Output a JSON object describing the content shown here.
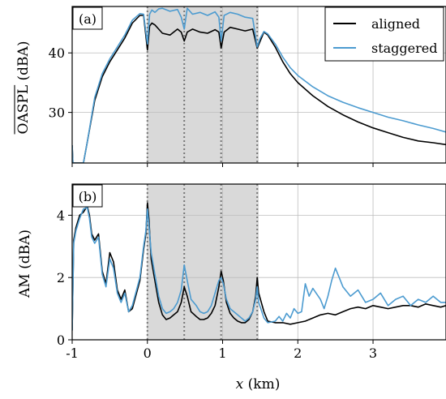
{
  "figure": {
    "xlabel_var": "x",
    "xlabel_unit": " (km)"
  },
  "chart_data": [
    {
      "type": "line",
      "panel_label": "(a)",
      "ylabel": "OASPL (dBA)",
      "ylabel_overline": "OASPL",
      "ylabel_unit": " (dBA)",
      "xlim": [
        -1.0,
        3.97
      ],
      "ylim": [
        21.5,
        47.8
      ],
      "x_ticks": [
        -1,
        0,
        1,
        2,
        3
      ],
      "x_tick_labels": [
        "",
        "",
        "",
        "",
        ""
      ],
      "y_ticks": [
        30,
        40
      ],
      "y_tick_labels": [
        "30",
        "40"
      ],
      "grid": true,
      "legend_position": "top-right",
      "shaded_region": [
        0,
        1.48
      ],
      "turbine_positions": [
        0,
        0.49,
        0.98,
        1.46
      ],
      "series": [
        {
          "name": "aligned",
          "color": "#000000",
          "x": [
            -1.0,
            -0.99,
            -0.9,
            -0.85,
            -0.8,
            -0.7,
            -0.6,
            -0.5,
            -0.4,
            -0.3,
            -0.2,
            -0.1,
            -0.05,
            0.0,
            0.03,
            0.06,
            0.1,
            0.15,
            0.2,
            0.3,
            0.4,
            0.45,
            0.49,
            0.53,
            0.6,
            0.7,
            0.8,
            0.9,
            0.95,
            0.98,
            1.02,
            1.1,
            1.2,
            1.3,
            1.4,
            1.46,
            1.5,
            1.55,
            1.6,
            1.7,
            1.8,
            1.9,
            2.0,
            2.2,
            2.4,
            2.6,
            2.8,
            3.0,
            3.2,
            3.4,
            3.6,
            3.8,
            3.97
          ],
          "y": [
            24.5,
            21.5,
            21.5,
            21.5,
            25.0,
            32.0,
            36.0,
            38.5,
            40.5,
            42.5,
            45.0,
            46.3,
            46.3,
            40.5,
            44.5,
            45.0,
            44.7,
            44.0,
            43.3,
            43.0,
            44.0,
            43.5,
            42.0,
            43.5,
            44.0,
            43.5,
            43.3,
            43.9,
            43.5,
            40.8,
            43.5,
            44.3,
            44.0,
            43.7,
            44.0,
            40.8,
            42.0,
            43.5,
            43.0,
            41.0,
            38.5,
            36.5,
            35.0,
            32.8,
            31.0,
            29.6,
            28.4,
            27.4,
            26.6,
            25.8,
            25.2,
            24.9,
            24.6
          ]
        },
        {
          "name": "staggered",
          "color": "#4c9bd0",
          "x": [
            -1.0,
            -0.99,
            -0.9,
            -0.85,
            -0.8,
            -0.7,
            -0.6,
            -0.5,
            -0.4,
            -0.3,
            -0.2,
            -0.1,
            -0.05,
            0.0,
            0.03,
            0.06,
            0.1,
            0.15,
            0.2,
            0.3,
            0.4,
            0.45,
            0.49,
            0.53,
            0.6,
            0.7,
            0.8,
            0.9,
            0.95,
            0.98,
            1.02,
            1.1,
            1.2,
            1.3,
            1.4,
            1.46,
            1.5,
            1.55,
            1.6,
            1.7,
            1.8,
            1.9,
            2.0,
            2.2,
            2.4,
            2.6,
            2.8,
            3.0,
            3.2,
            3.4,
            3.6,
            3.8,
            3.97
          ],
          "y": [
            24.5,
            21.5,
            21.5,
            21.5,
            25.0,
            32.5,
            36.5,
            39.0,
            41.0,
            43.0,
            45.5,
            46.6,
            46.5,
            41.5,
            46.5,
            47.2,
            46.8,
            47.4,
            47.5,
            47.0,
            47.3,
            46.0,
            44.0,
            47.5,
            46.5,
            46.8,
            46.3,
            46.9,
            46.0,
            42.0,
            46.3,
            46.8,
            46.5,
            46.0,
            45.8,
            41.0,
            42.5,
            43.6,
            43.2,
            41.5,
            39.3,
            37.5,
            36.2,
            34.3,
            32.8,
            31.7,
            30.8,
            30.0,
            29.2,
            28.6,
            27.9,
            27.3,
            26.7
          ]
        }
      ]
    },
    {
      "type": "line",
      "panel_label": "(b)",
      "ylabel": "AM (dBA)",
      "xlim": [
        -1.0,
        3.97
      ],
      "ylim": [
        0,
        5.0
      ],
      "x_ticks": [
        -1,
        0,
        1,
        2,
        3
      ],
      "x_tick_labels": [
        "-1",
        "0",
        "1",
        "2",
        "3"
      ],
      "y_ticks": [
        0,
        2,
        4
      ],
      "y_tick_labels": [
        "0",
        "2",
        "4"
      ],
      "grid": true,
      "shaded_region": [
        0,
        1.48
      ],
      "turbine_positions": [
        0,
        0.49,
        0.98,
        1.46
      ],
      "series": [
        {
          "name": "aligned",
          "color": "#000000",
          "x": [
            -1.0,
            -0.98,
            -0.95,
            -0.9,
            -0.85,
            -0.8,
            -0.77,
            -0.74,
            -0.7,
            -0.65,
            -0.6,
            -0.55,
            -0.5,
            -0.45,
            -0.4,
            -0.35,
            -0.3,
            -0.25,
            -0.2,
            -0.1,
            -0.05,
            -0.02,
            0.0,
            0.02,
            0.05,
            0.1,
            0.15,
            0.2,
            0.25,
            0.3,
            0.35,
            0.4,
            0.45,
            0.49,
            0.53,
            0.58,
            0.65,
            0.7,
            0.75,
            0.8,
            0.85,
            0.9,
            0.95,
            0.98,
            1.01,
            1.05,
            1.1,
            1.15,
            1.2,
            1.25,
            1.3,
            1.35,
            1.4,
            1.44,
            1.46,
            1.48,
            1.55,
            1.6,
            1.7,
            1.8,
            1.9,
            2.0,
            2.1,
            2.2,
            2.3,
            2.4,
            2.5,
            2.6,
            2.7,
            2.8,
            2.9,
            3.0,
            3.1,
            3.2,
            3.3,
            3.4,
            3.5,
            3.6,
            3.7,
            3.8,
            3.9,
            3.97
          ],
          "y": [
            0.3,
            3.2,
            3.6,
            4.0,
            4.1,
            4.3,
            4.0,
            3.4,
            3.2,
            3.4,
            2.2,
            1.8,
            2.8,
            2.5,
            1.6,
            1.3,
            1.6,
            0.9,
            1.0,
            1.9,
            2.9,
            3.4,
            4.4,
            3.9,
            2.6,
            1.9,
            1.2,
            0.8,
            0.65,
            0.7,
            0.8,
            0.9,
            1.2,
            1.7,
            1.4,
            0.9,
            0.75,
            0.65,
            0.65,
            0.7,
            0.85,
            1.1,
            1.7,
            2.2,
            1.9,
            1.2,
            0.85,
            0.7,
            0.6,
            0.55,
            0.55,
            0.65,
            0.9,
            1.4,
            2.0,
            1.5,
            0.9,
            0.6,
            0.55,
            0.55,
            0.5,
            0.55,
            0.6,
            0.7,
            0.8,
            0.85,
            0.8,
            0.9,
            1.0,
            1.05,
            1.0,
            1.1,
            1.05,
            1.0,
            1.05,
            1.1,
            1.1,
            1.05,
            1.15,
            1.1,
            1.05,
            1.1
          ]
        },
        {
          "name": "staggered",
          "color": "#4c9bd0",
          "x": [
            -1.0,
            -0.98,
            -0.95,
            -0.9,
            -0.85,
            -0.8,
            -0.77,
            -0.74,
            -0.7,
            -0.65,
            -0.6,
            -0.55,
            -0.5,
            -0.45,
            -0.4,
            -0.35,
            -0.3,
            -0.25,
            -0.2,
            -0.1,
            -0.05,
            -0.02,
            0.0,
            0.02,
            0.05,
            0.1,
            0.15,
            0.2,
            0.25,
            0.3,
            0.35,
            0.4,
            0.45,
            0.49,
            0.53,
            0.58,
            0.65,
            0.7,
            0.75,
            0.8,
            0.85,
            0.9,
            0.95,
            0.98,
            1.01,
            1.05,
            1.1,
            1.15,
            1.2,
            1.25,
            1.3,
            1.35,
            1.4,
            1.44,
            1.46,
            1.48,
            1.55,
            1.6,
            1.7,
            1.75,
            1.8,
            1.85,
            1.9,
            1.95,
            2.0,
            2.05,
            2.1,
            2.15,
            2.2,
            2.3,
            2.35,
            2.4,
            2.45,
            2.5,
            2.55,
            2.6,
            2.7,
            2.8,
            2.9,
            3.0,
            3.1,
            3.2,
            3.3,
            3.4,
            3.5,
            3.6,
            3.7,
            3.8,
            3.9,
            3.97
          ],
          "y": [
            0.3,
            3.1,
            3.5,
            3.9,
            4.2,
            4.25,
            3.9,
            3.3,
            3.1,
            3.3,
            2.1,
            1.7,
            2.6,
            2.3,
            1.5,
            1.2,
            1.5,
            0.9,
            1.1,
            2.0,
            3.0,
            3.5,
            4.2,
            3.7,
            2.8,
            2.1,
            1.4,
            1.0,
            0.85,
            0.9,
            1.0,
            1.2,
            1.6,
            2.4,
            1.9,
            1.3,
            1.1,
            0.9,
            0.85,
            0.9,
            1.1,
            1.5,
            1.9,
            2.0,
            1.8,
            1.3,
            1.0,
            0.9,
            0.8,
            0.7,
            0.6,
            0.7,
            0.9,
            1.3,
            1.7,
            1.2,
            0.7,
            0.55,
            0.6,
            0.75,
            0.6,
            0.85,
            0.7,
            1.0,
            0.85,
            0.9,
            1.8,
            1.4,
            1.65,
            1.3,
            1.0,
            1.4,
            1.9,
            2.3,
            2.0,
            1.7,
            1.4,
            1.6,
            1.2,
            1.3,
            1.5,
            1.1,
            1.3,
            1.4,
            1.1,
            1.3,
            1.2,
            1.4,
            1.2,
            1.2
          ]
        }
      ]
    }
  ]
}
